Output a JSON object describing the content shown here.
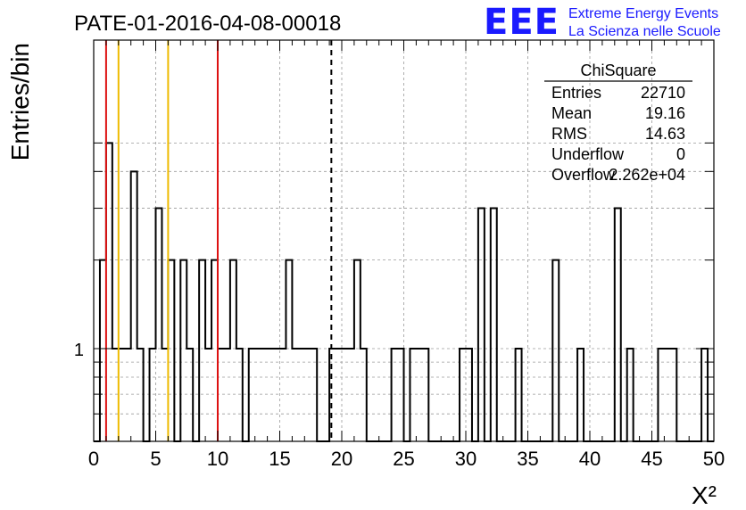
{
  "chart_data": {
    "type": "histogram",
    "title": "PATE-01-2016-04-08-00018",
    "xlabel": "X²",
    "ylabel": "Entries/bin",
    "xlim": [
      0,
      50
    ],
    "ylog": true,
    "x_ticks": [
      "0",
      "5",
      "10",
      "15",
      "20",
      "25",
      "30",
      "35",
      "40",
      "45",
      "50"
    ],
    "y_tick_labels": [
      "1"
    ],
    "grid": true,
    "bin_width": 0.5,
    "bin_low_edges": [
      0,
      0.5,
      1,
      1.5,
      2,
      2.5,
      3,
      3.5,
      4,
      4.5,
      5,
      5.5,
      6,
      6.5,
      7,
      7.5,
      8,
      8.5,
      9,
      9.5,
      10,
      10.5,
      11,
      11.5,
      12,
      12.5,
      13,
      13.5,
      14,
      14.5,
      15,
      15.5,
      16,
      16.5,
      17,
      17.5,
      18,
      18.5,
      19,
      19.5,
      20,
      20.5,
      21,
      21.5,
      22,
      22.5,
      23,
      23.5,
      24,
      24.5,
      25,
      25.5,
      26,
      26.5,
      27,
      27.5,
      28,
      28.5,
      29,
      29.5,
      30,
      30.5,
      31,
      31.5,
      32,
      32.5,
      33,
      33.5,
      34,
      34.5,
      35,
      35.5,
      36,
      36.5,
      37,
      37.5,
      38,
      38.5,
      39,
      39.5,
      40,
      40.5,
      41,
      41.5,
      42,
      42.5,
      43,
      43.5,
      44,
      44.5,
      45,
      45.5,
      46,
      46.5,
      47,
      47.5,
      48,
      48.5,
      49,
      49.5
    ],
    "counts": [
      0,
      2,
      5,
      1,
      1,
      1,
      4,
      1,
      0,
      1,
      3,
      1,
      2,
      0,
      2,
      1,
      0,
      2,
      1,
      2,
      1,
      1,
      2,
      1,
      0,
      1,
      1,
      1,
      1,
      1,
      1,
      2,
      1,
      1,
      1,
      1,
      0,
      0,
      1,
      1,
      1,
      1,
      2,
      1,
      0,
      0,
      0,
      0,
      1,
      1,
      0,
      1,
      1,
      1,
      0,
      0,
      0,
      0,
      0,
      1,
      1,
      0,
      3,
      0,
      3,
      0,
      0,
      0,
      1,
      0,
      0,
      0,
      0,
      0,
      2,
      0,
      0,
      0,
      1,
      0,
      0,
      0,
      0,
      0,
      3,
      0,
      1,
      0,
      0,
      0,
      0,
      1,
      1,
      1,
      0,
      0,
      0,
      0,
      1,
      0
    ],
    "reference_lines": [
      {
        "x": 1,
        "color": "#dd1111"
      },
      {
        "x": 2,
        "color": "#eebb00"
      },
      {
        "x": 6,
        "color": "#eebb00"
      },
      {
        "x": 10,
        "color": "#dd1111"
      },
      {
        "x": 19.16,
        "color": "#000000",
        "style": "dashed"
      }
    ],
    "stats_box": {
      "title": "ChiSquare",
      "rows": [
        {
          "label": "Entries",
          "value": "22710"
        },
        {
          "label": "Mean",
          "value": "19.16"
        },
        {
          "label": "RMS",
          "value": "14.63"
        },
        {
          "label": "Underflow",
          "value": "0"
        },
        {
          "label": "Overflow",
          "value": "2.262e+04"
        }
      ]
    }
  },
  "logo": {
    "mark": "EEE",
    "line1": "Extreme Energy Events",
    "line2": "La Scienza nelle Scuole",
    "color": "#1a1aff"
  }
}
